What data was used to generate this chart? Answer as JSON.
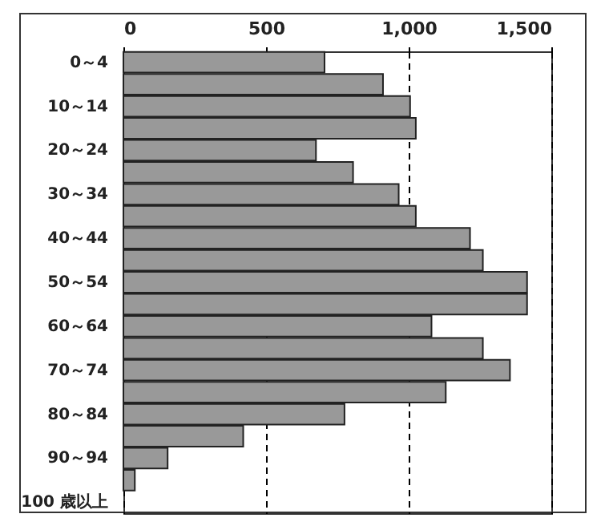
{
  "chart_data": {
    "type": "bar",
    "orientation": "horizontal",
    "categories": [
      "0～4",
      null,
      "10～14",
      null,
      "20～24",
      null,
      "30～34",
      null,
      "40～44",
      null,
      "50～54",
      null,
      "60～64",
      null,
      "70～74",
      null,
      "80～84",
      null,
      "90～94",
      null,
      "100 歳以上"
    ],
    "values": [
      705,
      910,
      1005,
      1025,
      675,
      805,
      965,
      1025,
      1215,
      1260,
      1415,
      1415,
      1080,
      1260,
      1355,
      1130,
      775,
      420,
      155,
      40,
      null
    ],
    "color": "#999999",
    "xlim": [
      0,
      1500
    ],
    "xticks": [
      0,
      500,
      {
        "value": 1000,
        "label": "1,000"
      },
      {
        "value": 1500,
        "label": "1,500"
      }
    ],
    "grid": "x"
  }
}
